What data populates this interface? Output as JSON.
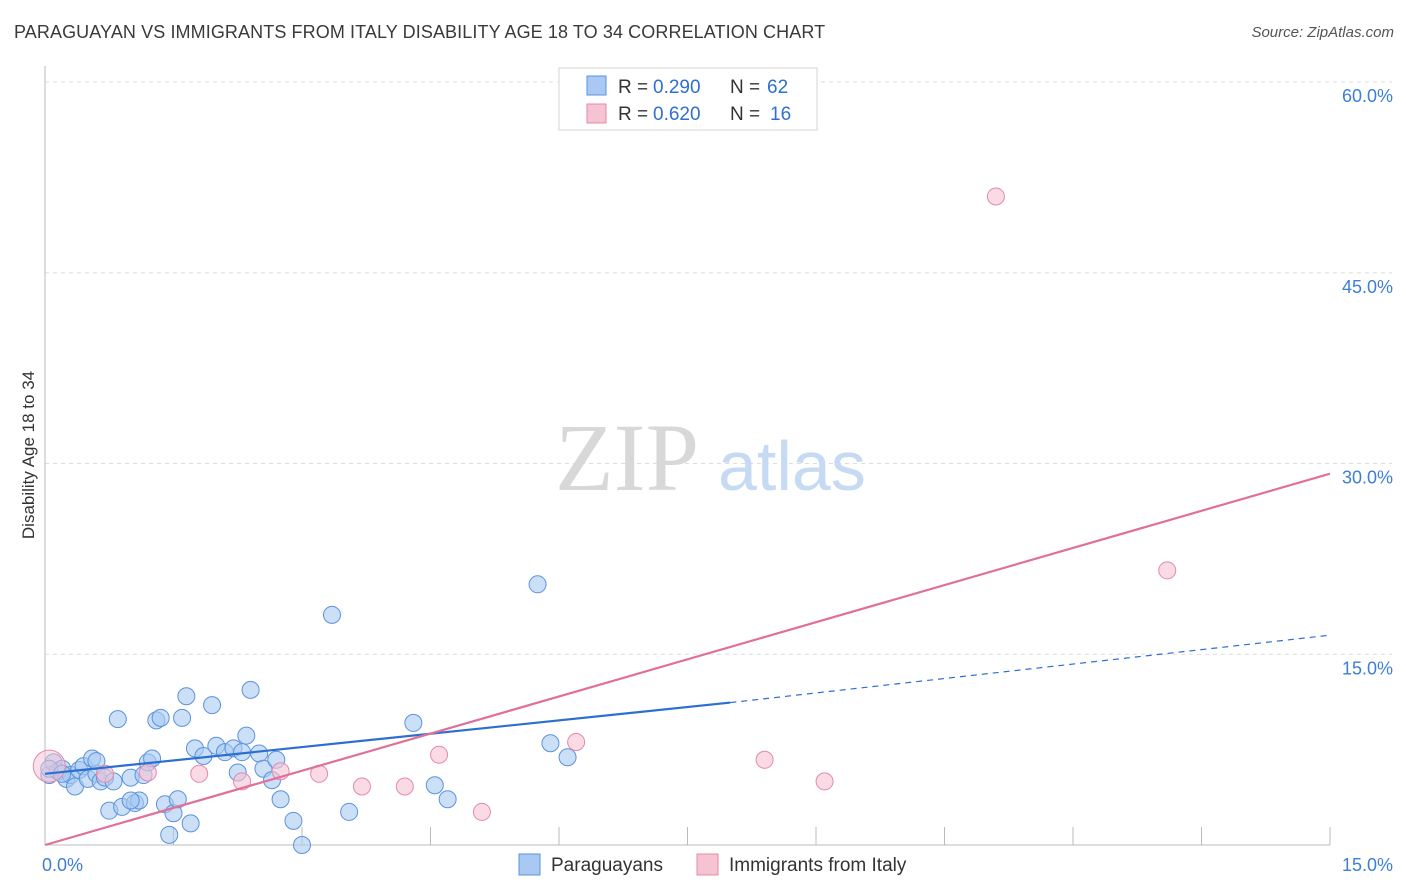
{
  "title": "PARAGUAYAN VS IMMIGRANTS FROM ITALY DISABILITY AGE 18 TO 34 CORRELATION CHART",
  "source": "Source: ZipAtlas.com",
  "watermark": {
    "zip": "ZIP",
    "atlas": "atlas"
  },
  "chart_data": {
    "type": "scatter",
    "ylabel": "Disability Age 18 to 34",
    "xlim": [
      0,
      15
    ],
    "ylim": [
      0,
      60
    ],
    "x_tick_labels": [
      {
        "value": 0,
        "label": "0.0%"
      },
      {
        "value": 15,
        "label": "15.0%"
      }
    ],
    "y_tick_labels": [
      {
        "value": 15,
        "label": "15.0%"
      },
      {
        "value": 30,
        "label": "30.0%"
      },
      {
        "value": 45,
        "label": "45.0%"
      },
      {
        "value": 60,
        "label": "60.0%"
      }
    ],
    "colors": {
      "blue_fill": "#a9c9f2",
      "blue_stroke": "#5b93dc",
      "blue_line": "#2c6fd1",
      "pink_fill": "#f6c3d3",
      "pink_stroke": "#e48aa9",
      "pink_line": "#e0709a",
      "grid": "#dddddd",
      "axis": "#bbbbbb"
    },
    "legend": {
      "r_label": "R = ",
      "n_label": "N = ",
      "entries": [
        {
          "r": "0.290",
          "n": "62"
        },
        {
          "r": "0.620",
          "n": "16"
        }
      ]
    },
    "series": [
      {
        "name": "Paraguayans",
        "points": [
          [
            0.05,
            5.5
          ],
          [
            0.1,
            6.5
          ],
          [
            0.15,
            5.8
          ],
          [
            0.2,
            6.0
          ],
          [
            0.25,
            5.2
          ],
          [
            0.3,
            5.5
          ],
          [
            0.35,
            4.6
          ],
          [
            0.4,
            5.9
          ],
          [
            0.45,
            6.2
          ],
          [
            0.5,
            5.2
          ],
          [
            0.55,
            6.8
          ],
          [
            0.6,
            5.6
          ],
          [
            0.65,
            5.0
          ],
          [
            0.7,
            5.3
          ],
          [
            0.75,
            2.7
          ],
          [
            0.8,
            5.0
          ],
          [
            0.85,
            9.9
          ],
          [
            0.9,
            3.0
          ],
          [
            1.0,
            5.3
          ],
          [
            1.05,
            3.3
          ],
          [
            1.1,
            3.5
          ],
          [
            1.15,
            5.5
          ],
          [
            1.2,
            6.5
          ],
          [
            1.25,
            6.8
          ],
          [
            1.3,
            9.8
          ],
          [
            1.35,
            10.0
          ],
          [
            1.4,
            3.2
          ],
          [
            1.45,
            0.8
          ],
          [
            1.5,
            2.5
          ],
          [
            1.6,
            10.0
          ],
          [
            1.65,
            11.7
          ],
          [
            1.7,
            1.7
          ],
          [
            1.75,
            7.6
          ],
          [
            1.85,
            7.0
          ],
          [
            1.95,
            11.0
          ],
          [
            2.0,
            7.8
          ],
          [
            2.1,
            7.3
          ],
          [
            2.2,
            7.6
          ],
          [
            2.25,
            5.7
          ],
          [
            2.3,
            7.3
          ],
          [
            2.35,
            8.6
          ],
          [
            2.4,
            12.2
          ],
          [
            2.5,
            7.2
          ],
          [
            2.55,
            6.0
          ],
          [
            2.65,
            5.1
          ],
          [
            2.7,
            6.7
          ],
          [
            2.75,
            3.6
          ],
          [
            2.9,
            1.9
          ],
          [
            3.0,
            0.0
          ],
          [
            3.35,
            18.1
          ],
          [
            3.55,
            2.6
          ],
          [
            4.3,
            9.6
          ],
          [
            4.55,
            4.7
          ],
          [
            4.7,
            3.6
          ],
          [
            5.75,
            20.5
          ],
          [
            5.9,
            8.0
          ],
          [
            6.1,
            6.9
          ],
          [
            0.05,
            6.0
          ],
          [
            0.2,
            5.6
          ],
          [
            0.6,
            6.6
          ],
          [
            1.0,
            3.5
          ],
          [
            1.55,
            3.6
          ]
        ],
        "trend_solid": [
          [
            0,
            5.6
          ],
          [
            8.0,
            11.2
          ]
        ],
        "trend_dashed": [
          [
            8.0,
            11.2
          ],
          [
            15,
            16.5
          ]
        ]
      },
      {
        "name": "Immigrants from Italy",
        "points": [
          [
            0.05,
            6.2
          ],
          [
            0.7,
            5.6
          ],
          [
            1.2,
            5.7
          ],
          [
            1.8,
            5.6
          ],
          [
            2.3,
            5.0
          ],
          [
            2.75,
            5.8
          ],
          [
            3.2,
            5.6
          ],
          [
            3.7,
            4.6
          ],
          [
            4.2,
            4.6
          ],
          [
            4.6,
            7.1
          ],
          [
            5.1,
            2.6
          ],
          [
            6.2,
            8.1
          ],
          [
            8.4,
            6.7
          ],
          [
            9.1,
            5.0
          ],
          [
            11.1,
            51.0
          ],
          [
            13.1,
            21.6
          ]
        ],
        "big_index": 0,
        "trend_solid": [
          [
            0,
            0.0
          ],
          [
            15,
            29.2
          ]
        ]
      }
    ]
  }
}
